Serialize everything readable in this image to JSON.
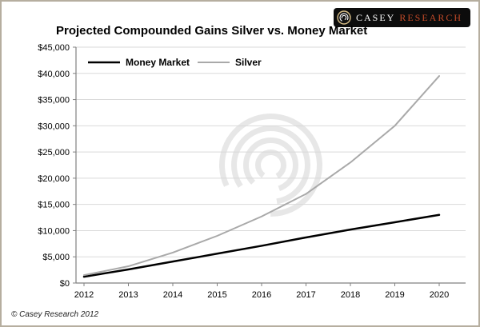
{
  "logo": {
    "icon": "concentric-rings-icon",
    "brand_first": "CASEY",
    "brand_second": "RESEARCH",
    "badge_bg": "#0c0c0c",
    "brand_first_color": "#ffffff",
    "brand_second_color": "#c34a28",
    "emblem_ring_color": "#d8bf88"
  },
  "footer": {
    "copyright": "© Casey Research 2012"
  },
  "chart_data": {
    "type": "line",
    "title": "Projected Compounded Gains Silver vs. Money Market",
    "x": [
      2012,
      2013,
      2014,
      2015,
      2016,
      2017,
      2018,
      2019,
      2020
    ],
    "xtick_labels": [
      "2012",
      "2013",
      "2014",
      "2015",
      "2016",
      "2017",
      "2018",
      "2019",
      "2020"
    ],
    "series": [
      {
        "name": "Money Market",
        "color": "#000000",
        "width": 2.5,
        "values": [
          1200,
          2600,
          4100,
          5600,
          7100,
          8700,
          10200,
          11600,
          13000
        ]
      },
      {
        "name": "Silver",
        "color": "#a9a9a9",
        "width": 2,
        "values": [
          1500,
          3200,
          5800,
          9000,
          12700,
          17000,
          23000,
          30000,
          39500
        ]
      }
    ],
    "ylim": [
      0,
      45000
    ],
    "ytick_step": 5000,
    "ytick_labels": [
      "$0",
      "$5,000",
      "$10,000",
      "$15,000",
      "$20,000",
      "$25,000",
      "$30,000",
      "$35,000",
      "$40,000",
      "$45,000"
    ],
    "grid": true,
    "gridline_color": "#d9d9d9",
    "axis_color": "#808080",
    "legend_position": "top-left-inside",
    "watermark": "casey-concentric-rings-watermark",
    "watermark_color": "#e7e7e7"
  }
}
